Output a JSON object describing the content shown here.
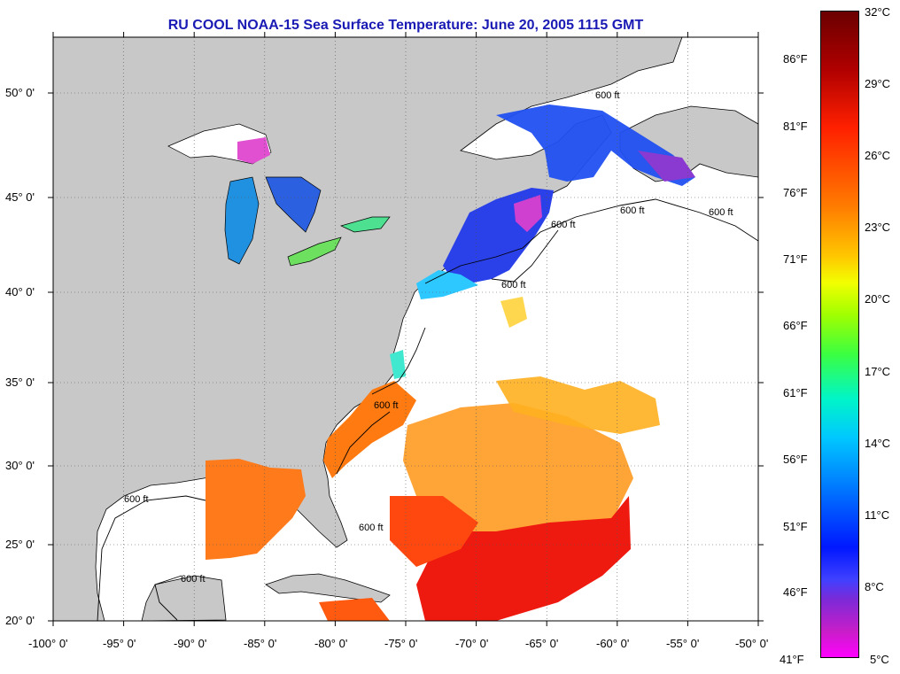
{
  "title": "RU COOL  NOAA-15  Sea Surface Temperature:  June 20, 2005 1115 GMT",
  "axes": {
    "x_ticks": [
      "-100° 0'",
      "-95° 0'",
      "-90° 0'",
      "-85° 0'",
      "-80° 0'",
      "-75° 0'",
      "-70° 0'",
      "-65° 0'",
      "-60° 0'",
      "-55° 0'",
      "-50° 0'"
    ],
    "y_ticks": [
      "50° 0'",
      "45° 0'",
      "40° 0'",
      "35° 0'",
      "30° 0'",
      "25° 0'",
      "20° 0'"
    ],
    "lon_range": [
      -100,
      -50
    ],
    "lat_range": [
      20,
      52.5
    ]
  },
  "colorbar": {
    "celsius_labels": [
      "32°C",
      "29°C",
      "26°C",
      "23°C",
      "20°C",
      "17°C",
      "14°C",
      "11°C",
      "8°C",
      "5°C"
    ],
    "fahrenheit_labels": [
      "86°F",
      "81°F",
      "76°F",
      "71°F",
      "66°F",
      "61°F",
      "56°F",
      "51°F",
      "46°F",
      "41°F"
    ]
  },
  "contour_labels": [
    "600 ft",
    "600 ft",
    "600 ft",
    "600 ft",
    "600 ft",
    "600 ft",
    "600 ft",
    "600 ft",
    "600 ft"
  ],
  "colors": {
    "land": "#c8c8c8",
    "water_no_data": "#ffffff",
    "title": "#1a1ab4",
    "cold": "#2030f0",
    "warm": "#ff8000",
    "hot": "#ee1010"
  }
}
